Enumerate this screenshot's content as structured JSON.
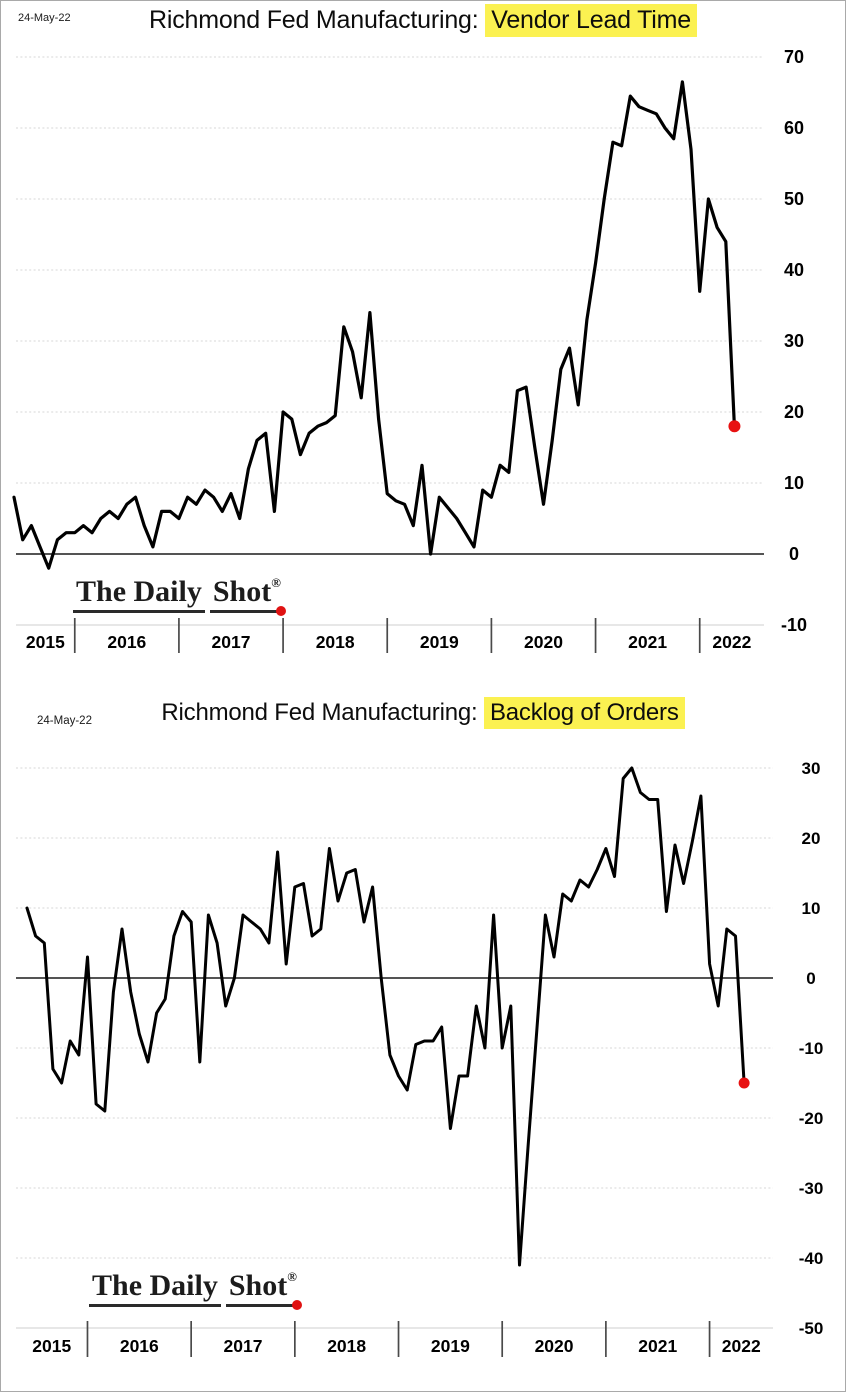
{
  "charts": [
    {
      "date_label": "24-May-22",
      "title_prefix": "Richmond Fed Manufacturing: ",
      "title_highlight": "Vendor Lead Time",
      "highlight_color": "#FBF151",
      "watermark_part1": "The Daily",
      "watermark_part2": "Shot",
      "watermark_reg": "®",
      "watermark_dot_color": "#E01212"
    },
    {
      "date_label": "24-May-22",
      "title_prefix": "Richmond Fed Manufacturing: ",
      "title_highlight": "Backlog of Orders",
      "highlight_color": "#FBF151",
      "watermark_part1": "The Daily",
      "watermark_part2": "Shot",
      "watermark_reg": "®",
      "watermark_dot_color": "#E01212"
    }
  ],
  "chart_data": [
    {
      "type": "line",
      "title": "Richmond Fed Manufacturing: Vendor Lead Time",
      "frequency": "monthly",
      "x_start": "2015-06",
      "x_end": "2022-05",
      "x_tick_labels": [
        "2015",
        "2016",
        "2017",
        "2018",
        "2019",
        "2020",
        "2021",
        "2022"
      ],
      "year_start_indices": [
        7,
        19,
        31,
        43,
        55,
        67,
        79
      ],
      "ylim": [
        -10,
        70
      ],
      "y_ticks": [
        70,
        60,
        50,
        40,
        30,
        20,
        10,
        0,
        -10
      ],
      "grid": "horizontal",
      "legend": "none",
      "line_color": "#000000",
      "grid_color": "#d7d7d7",
      "zero_line_color": "#3c3c3c",
      "last_point": {
        "label": "latest",
        "value": 18,
        "marker_color": "#E81111"
      },
      "values": [
        8,
        2,
        4,
        1,
        -2,
        2,
        3,
        3,
        4,
        3,
        5,
        6,
        5,
        7,
        8,
        4,
        1,
        6,
        6,
        5,
        8,
        7,
        9,
        8,
        6,
        8.5,
        5,
        12,
        16,
        17,
        6,
        20,
        19,
        14,
        17,
        18,
        18.5,
        19.5,
        32,
        28.5,
        22,
        34,
        19,
        8.5,
        7.5,
        7,
        4,
        12.5,
        0,
        8,
        6.5,
        5,
        3,
        1,
        9,
        8,
        12.5,
        11.5,
        23,
        23.5,
        15,
        7,
        16,
        26,
        29,
        21,
        33,
        41,
        50,
        58,
        57.5,
        64.5,
        63,
        62.5,
        62,
        60,
        58.5,
        66.5,
        57,
        37,
        50,
        46,
        44,
        18
      ]
    },
    {
      "type": "line",
      "title": "Richmond Fed Manufacturing: Backlog of Orders",
      "frequency": "monthly",
      "x_start": "2015-06",
      "x_end": "2022-05",
      "x_tick_labels": [
        "2015",
        "2016",
        "2017",
        "2018",
        "2019",
        "2020",
        "2021",
        "2022"
      ],
      "year_start_indices": [
        7,
        19,
        31,
        43,
        55,
        67,
        79
      ],
      "ylim": [
        -50,
        30
      ],
      "y_ticks": [
        30,
        20,
        10,
        0,
        -10,
        -20,
        -30,
        -40,
        -50
      ],
      "grid": "horizontal",
      "legend": "none",
      "line_color": "#000000",
      "grid_color": "#d7d7d7",
      "zero_line_color": "#3c3c3c",
      "last_point": {
        "label": "latest",
        "value": -15,
        "marker_color": "#E81111"
      },
      "values": [
        10,
        6,
        5,
        -13,
        -15,
        -9,
        -11,
        3,
        -18,
        -19,
        -2,
        7,
        -2,
        -8,
        -12,
        -5,
        -3,
        6,
        9.5,
        8,
        -12,
        9,
        5,
        -4,
        0,
        9,
        8,
        7,
        5,
        18,
        2,
        13,
        13.5,
        6,
        7,
        18.5,
        11,
        15,
        15.5,
        8,
        13,
        0,
        -11,
        -14,
        -16,
        -9.5,
        -9,
        -9,
        -7,
        -21.5,
        -14,
        -14,
        -4,
        -10,
        9,
        -10,
        -4,
        -41,
        -24,
        -7.5,
        9,
        3,
        12,
        11,
        14,
        13,
        15.5,
        18.5,
        14.5,
        28.5,
        30,
        26.5,
        25.5,
        25.5,
        9.5,
        19,
        13.5,
        19.5,
        26,
        2,
        -4,
        7,
        6,
        -15
      ]
    }
  ]
}
